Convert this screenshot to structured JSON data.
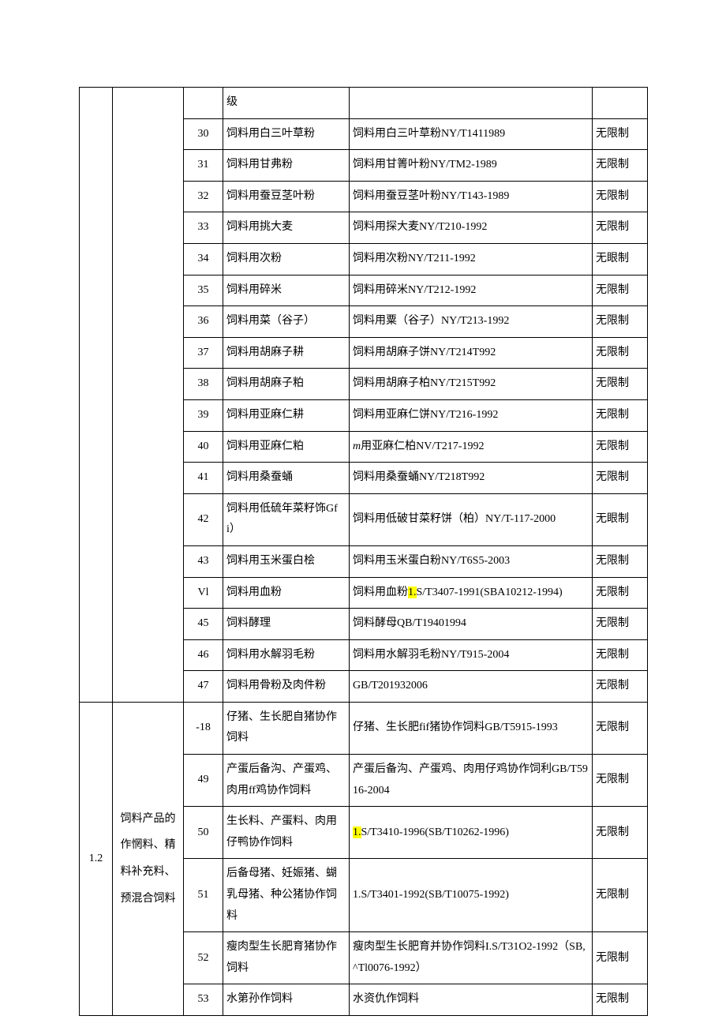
{
  "table": {
    "col_widths": {
      "code": 42,
      "cat": 90,
      "idx": 50,
      "name": 160,
      "std": 308,
      "lim": 70
    },
    "font_size": 14,
    "border_color": "#000000",
    "background_color": "#ffffff",
    "text_color": "#000000",
    "highlight_color": "#ffff00",
    "section1_rowspan": 19,
    "section2_rowspan": 6,
    "section2_code": "1.2",
    "section2_category": "饲料产品的作惘料、精料补充料、预混合饲料",
    "rows": [
      {
        "idx": "",
        "name": "级",
        "std": "",
        "lim": ""
      },
      {
        "idx": "30",
        "name": "饲料用白三叶草粉",
        "std": "饲料用白三叶草粉NY/T1411989",
        "lim": "无限制"
      },
      {
        "idx": "31",
        "name": "饲料用甘弗粉",
        "std": "饲料用甘箐叶粉NY/TM2-1989",
        "lim": "无限制"
      },
      {
        "idx": "32",
        "name": "饲料用蚕豆茎叶粉",
        "std": "饲料用蚕豆茎叶粉NY/T143-1989",
        "lim": "无限制"
      },
      {
        "idx": "33",
        "name": "饲料用挑大麦",
        "std": "饲料用探大麦NY/T210-1992",
        "lim": "无限制"
      },
      {
        "idx": "34",
        "name": "饲料用次粉",
        "std": "饲料用次粉NY/T211-1992",
        "lim": "无眼制"
      },
      {
        "idx": "35",
        "name": "饲料用碎米",
        "std": "饲料用碎米NY/T212-1992",
        "lim": "无限制"
      },
      {
        "idx": "36",
        "name": "饲料用菜（谷子）",
        "std": "饲料用粟（谷子）NY/T213-1992",
        "lim": "无限制"
      },
      {
        "idx": "37",
        "name": "饲料用胡麻子耕",
        "std": "饲料用胡麻子饼NY/T214T992",
        "lim": "无限制"
      },
      {
        "idx": "38",
        "name": "饲料用胡麻子粕",
        "std": "饲料用胡麻子柏NY/T215T992",
        "lim": "无限制"
      },
      {
        "idx": "39",
        "name": "饲料用亚麻仁耕",
        "std": "饲料用亚麻仁饼NY/T216-1992",
        "lim": "无限制"
      },
      {
        "idx": "40",
        "name": "饲料用亚麻仁粕",
        "std_prefix_italic": "m",
        "std_rest": "用亚麻仁柏NV/T217-1992",
        "lim": "无限制"
      },
      {
        "idx": "41",
        "name": "饲料用桑蚕蛹",
        "std": "饲料用桑蚕蛹NY/T218T992",
        "lim": "无限制"
      },
      {
        "idx": "42",
        "name": "饲料用低硫年菜籽饰Gfi）",
        "std": "饲料用低破甘菜籽饼（柏）NY/T-117-2000",
        "lim": "无眼制"
      },
      {
        "idx": "43",
        "name": "饲料用玉米蛋白桧",
        "std": "饲料用玉米蛋白粉NY/T6S5-2003",
        "lim": "无限制"
      },
      {
        "idx": "Vl",
        "name": "饲料用血粉",
        "std_pre": "饲料用血粉",
        "std_hl": "1.",
        "std_post": "S/T3407-1991(SBA10212-1994)",
        "lim": "无限制"
      },
      {
        "idx": "45",
        "name": "饲料酵理",
        "std": "饲料酵母QB/T19401994",
        "lim": "无限制"
      },
      {
        "idx": "46",
        "name": "饲料用水解羽毛粉",
        "std": "饲料用水解羽毛粉NY/T915-2004",
        "lim": "无限制"
      },
      {
        "idx": "47",
        "name": "饲料用骨粉及肉件粉",
        "std": "GB/T201932006",
        "lim": "无限制"
      },
      {
        "idx": "-18",
        "name": "仔猪、生长肥自猪协作饲料",
        "std": "仔猪、生长肥fif猪协作饲料GB/T5915-1993",
        "lim": "无限制"
      },
      {
        "idx": "49",
        "name": "产蛋后备沟、产蛋鸡、肉用ff鸡协作饲料",
        "std": "产蛋后备沟、产蛋鸡、肉用仔鸡协作饲利GB/T5916-2004",
        "lim": "无限制"
      },
      {
        "idx": "50",
        "name": "生长料、产蛋料、肉用仔鸭协作饲料",
        "std_hl": "1.",
        "std_post": "S/T3410-1996(SB/T10262-1996)",
        "lim": "无限制"
      },
      {
        "idx": "51",
        "name": "后备母猪、妊娠猪、蝴乳母猪、种公猪协作饲料",
        "std": "1.S/T3401-1992(SB/T10075-1992)",
        "lim": "无限制"
      },
      {
        "idx": "52",
        "name": "瘦肉型生长肥育猪协作饲料",
        "std": "瘦肉型生长肥育并协作饲料I.S/T31O2-1992（SB,^Tl0076-1992）",
        "lim": "无限制"
      },
      {
        "idx": "53",
        "name": "水第孙作饲料",
        "std": "水资仇作饲料",
        "lim": "无限制"
      }
    ]
  }
}
